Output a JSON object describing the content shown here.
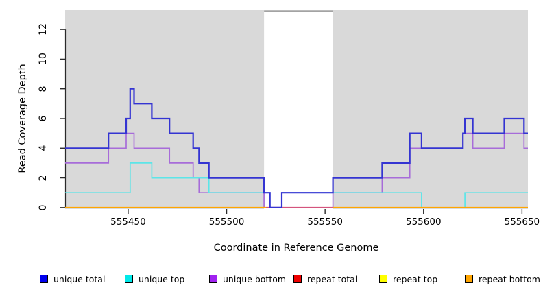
{
  "chart_data": {
    "type": "line",
    "subtype": "step",
    "title": "",
    "xlabel": "Coordinate in Reference Genome",
    "ylabel": "Read Coverage Depth",
    "x_ticks": [
      555450,
      555500,
      555550,
      555600,
      555650
    ],
    "y_ticks": [
      0,
      2,
      4,
      6,
      8,
      10,
      12
    ],
    "xlim": [
      555418,
      555653
    ],
    "ylim": [
      -0.1,
      13.3
    ],
    "grid": false,
    "panel_bg": "#d9d9d9",
    "highlight_band": {
      "x_start": 555519,
      "x_end": 555554,
      "fill": "#ffffff",
      "top_border": "#a3a3a3"
    },
    "legend_position": "bottom",
    "draw_order": [
      "unique bottom",
      "unique top",
      "repeat top",
      "repeat total",
      "repeat bottom",
      "unique total"
    ],
    "series": [
      {
        "name": "unique total",
        "line_color": "#3434d2",
        "swatch_color": "#0000ee",
        "line_width": 2.2,
        "segments": [
          {
            "steps": [
              [
                555418,
                4
              ],
              [
                555440,
                5
              ],
              [
                555449,
                6
              ],
              [
                555451,
                8
              ],
              [
                555453,
                7
              ],
              [
                555462,
                6
              ],
              [
                555471,
                5
              ],
              [
                555483,
                4
              ],
              [
                555486,
                3
              ],
              [
                555491,
                2
              ],
              [
                555519,
                1
              ],
              [
                555522,
                0
              ],
              [
                555528,
                1
              ],
              [
                555554,
                2
              ],
              [
                555579,
                3
              ],
              [
                555593,
                5
              ],
              [
                555599,
                4
              ],
              [
                555620,
                5
              ],
              [
                555621,
                6
              ],
              [
                555625,
                5
              ],
              [
                555641,
                6
              ],
              [
                555651,
                5
              ]
            ],
            "x_end": 555653
          }
        ]
      },
      {
        "name": "unique top",
        "line_color": "#5ce5e8",
        "swatch_color": "#00e9e9",
        "line_width": 1.7,
        "segments": [
          {
            "steps": [
              [
                555418,
                1
              ],
              [
                555451,
                3
              ],
              [
                555462,
                2
              ],
              [
                555491,
                1
              ],
              [
                555522,
                0
              ],
              [
                555528,
                1
              ],
              [
                555599,
                0
              ],
              [
                555621,
                1
              ]
            ],
            "x_end": 555653
          }
        ]
      },
      {
        "name": "unique bottom",
        "line_color": "#a76cd9",
        "swatch_color": "#a021f0",
        "line_width": 1.7,
        "segments": [
          {
            "steps": [
              [
                555418,
                3
              ],
              [
                555440,
                4
              ],
              [
                555449,
                5
              ],
              [
                555453,
                4
              ],
              [
                555471,
                3
              ],
              [
                555483,
                2
              ],
              [
                555486,
                1
              ],
              [
                555519,
                0
              ],
              [
                555554,
                1
              ],
              [
                555579,
                2
              ],
              [
                555593,
                4
              ],
              [
                555620,
                5
              ],
              [
                555625,
                4
              ],
              [
                555641,
                5
              ],
              [
                555651,
                4
              ]
            ],
            "x_end": 555653
          }
        ]
      },
      {
        "name": "repeat total",
        "line_color": "#d4547e",
        "swatch_color": "#ee0000",
        "line_width": 1.8,
        "segments": [
          {
            "steps": [
              [
                555520,
                0
              ]
            ],
            "x_end": 555554
          }
        ]
      },
      {
        "name": "repeat top",
        "line_color": "#ffff00",
        "swatch_color": "#ffff00",
        "line_width": 1.7,
        "segments": [
          {
            "steps": [
              [
                555418,
                0
              ]
            ],
            "x_end": 555653
          }
        ]
      },
      {
        "name": "repeat bottom",
        "line_color": "#ffa500",
        "swatch_color": "#ffa500",
        "line_width": 1.8,
        "segments": [
          {
            "steps": [
              [
                555418,
                0
              ]
            ],
            "x_end": 555520
          },
          {
            "steps": [
              [
                555554,
                0
              ]
            ],
            "x_end": 555653
          }
        ]
      }
    ]
  }
}
